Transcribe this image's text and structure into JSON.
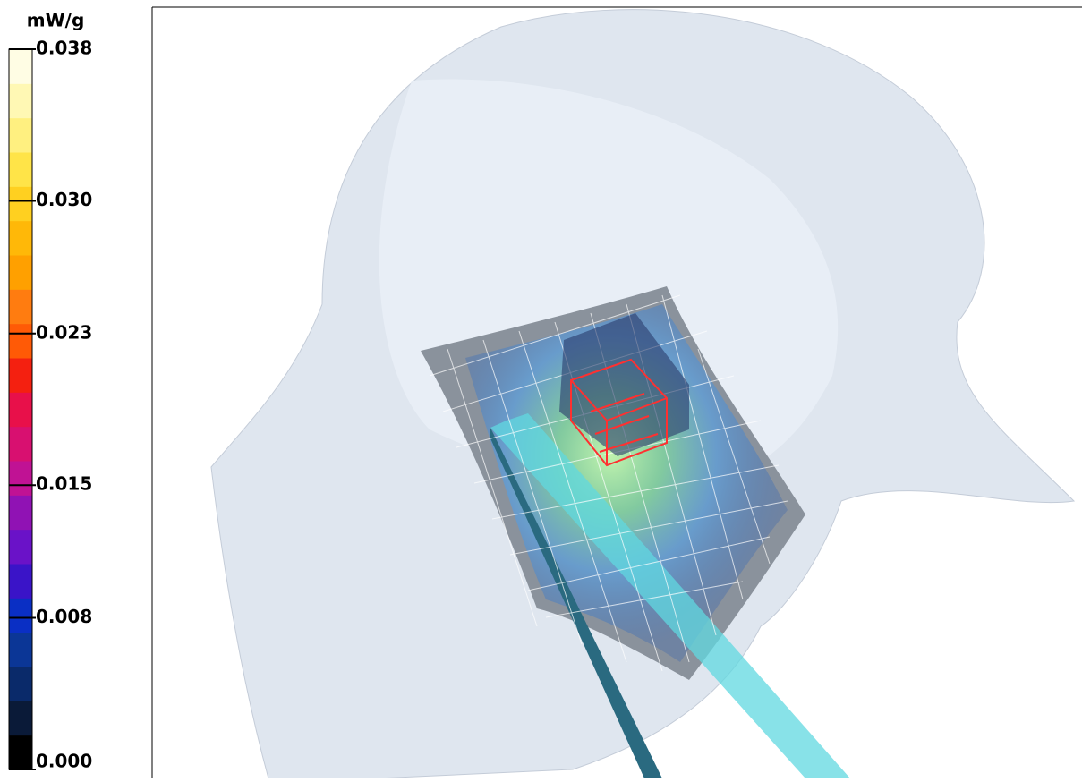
{
  "colorbar": {
    "unit": "mW/g",
    "lim": [
      0,
      0.038
    ],
    "ticks": [
      {
        "value": 0,
        "label": "0.000"
      },
      0.008,
      0.015,
      0.023,
      {
        "value": 0.03,
        "label": "0.030"
      },
      0.038
    ],
    "colors": [
      "#000000",
      "#0a1a38",
      "#0a2a6a",
      "#0b3696",
      "#0a2fc4",
      "#3a14c8",
      "#6a12c8",
      "#9012b4",
      "#c01294",
      "#d81070",
      "#e8104a",
      "#f42010",
      "#ff5a06",
      "#ff7c10",
      "#ffa000",
      "#ffb808",
      "#ffd020",
      "#ffe448",
      "#fff080",
      "#fff8b4",
      "#fffde4"
    ]
  }
}
